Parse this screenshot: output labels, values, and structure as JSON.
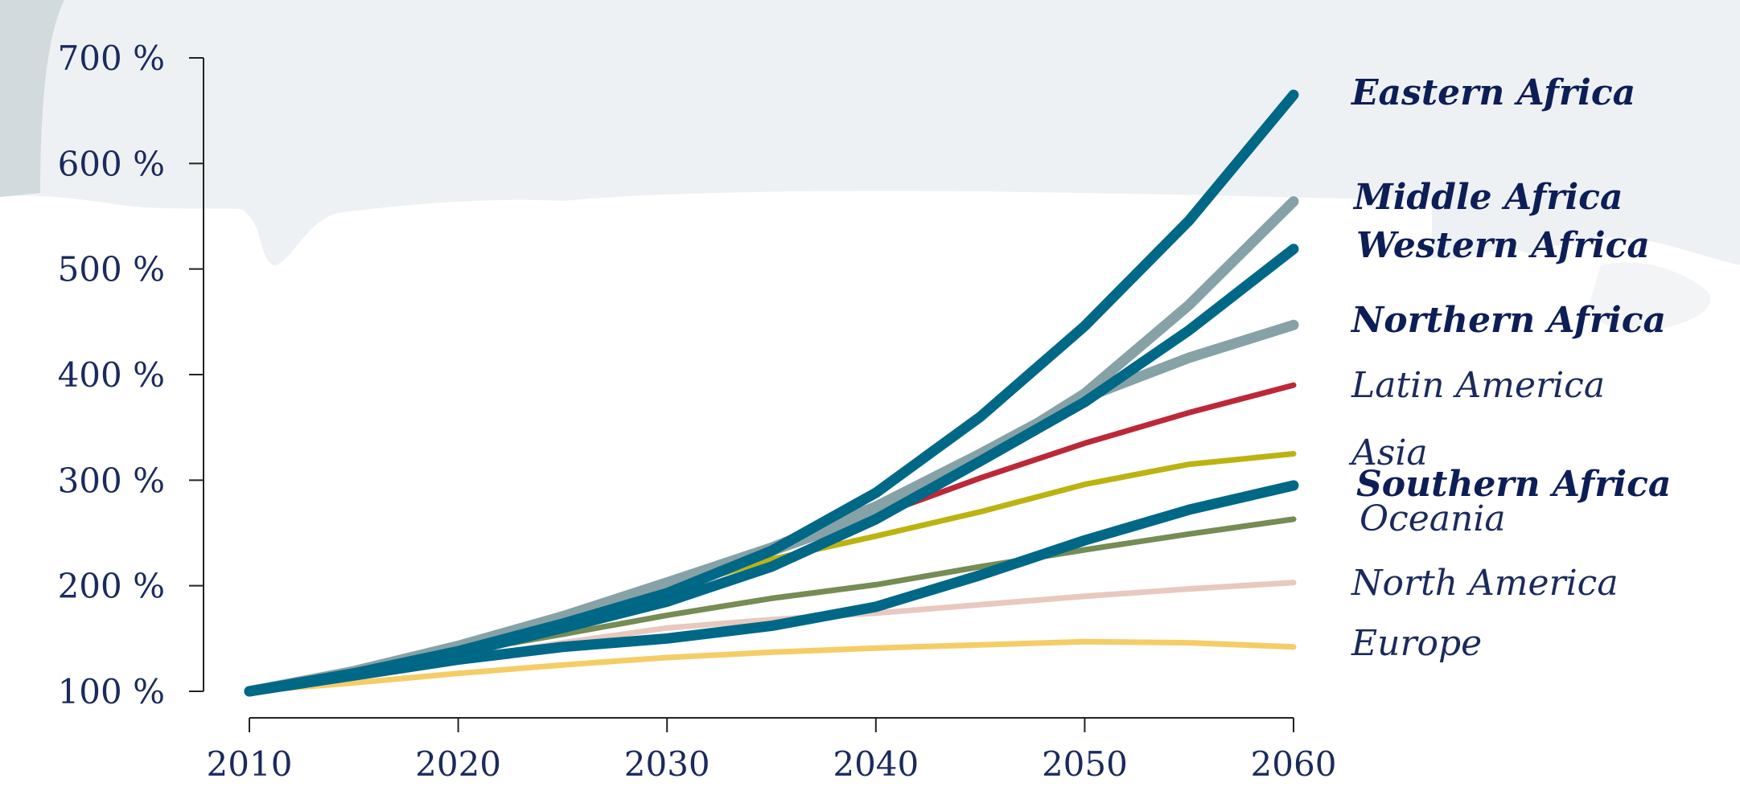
{
  "chart_data": {
    "type": "line",
    "title": "",
    "xlabel": "",
    "ylabel": "",
    "xlim": [
      2010,
      2060
    ],
    "ylim": [
      100,
      700
    ],
    "x_ticks": [
      "2010",
      "2020",
      "2030",
      "2040",
      "2050",
      "2060"
    ],
    "y_ticks": [
      "100 %",
      "200 %",
      "300 %",
      "400 %",
      "500 %",
      "600 %",
      "700 %"
    ],
    "grid": false,
    "legend": "direct labels at line ends (right)",
    "x": [
      2010,
      2015,
      2020,
      2025,
      2030,
      2035,
      2040,
      2045,
      2050,
      2055,
      2060
    ],
    "series": [
      {
        "name": "Europe",
        "color": "#f5cd67",
        "emphasis": false,
        "values": [
          100,
          108,
          117,
          125,
          132,
          137,
          141,
          144,
          147,
          146,
          142
        ]
      },
      {
        "name": "North America",
        "color": "#e8c8bf",
        "emphasis": false,
        "values": [
          100,
          114,
          130,
          146,
          160,
          168,
          174,
          182,
          190,
          197,
          203
        ]
      },
      {
        "name": "Oceania",
        "color": "#758c55",
        "emphasis": false,
        "values": [
          100,
          117,
          137,
          154,
          172,
          188,
          201,
          218,
          234,
          249,
          263
        ]
      },
      {
        "name": "Asia",
        "color": "#bcb312",
        "emphasis": false,
        "values": [
          100,
          119,
          141,
          165,
          196,
          225,
          247,
          270,
          296,
          315,
          325
        ]
      },
      {
        "name": "Latin America",
        "color": "#bd2838",
        "emphasis": false,
        "values": [
          100,
          120,
          145,
          173,
          202,
          233,
          266,
          302,
          335,
          364,
          390
        ]
      },
      {
        "name": "Northern Africa",
        "color": "#87a2a6",
        "emphasis": true,
        "values": [
          100,
          119,
          143,
          171,
          203,
          236,
          275,
          325,
          378,
          416,
          447
        ]
      },
      {
        "name": "Middle Africa",
        "color": "#87a2a6",
        "emphasis": true,
        "values": [
          100,
          118,
          140,
          169,
          200,
          233,
          268,
          320,
          382,
          466,
          564
        ]
      },
      {
        "name": "Western Africa",
        "color": "#006887",
        "emphasis": true,
        "values": [
          100,
          116,
          136,
          160,
          185,
          218,
          263,
          318,
          374,
          442,
          519
        ]
      },
      {
        "name": "Eastern Africa",
        "color": "#006887",
        "emphasis": true,
        "values": [
          100,
          117,
          138,
          164,
          193,
          233,
          288,
          360,
          446,
          546,
          665
        ]
      },
      {
        "name": "Southern Africa",
        "color": "#006887",
        "emphasis": true,
        "values": [
          100,
          115,
          130,
          142,
          150,
          162,
          180,
          210,
          243,
          272,
          295
        ]
      }
    ]
  }
}
